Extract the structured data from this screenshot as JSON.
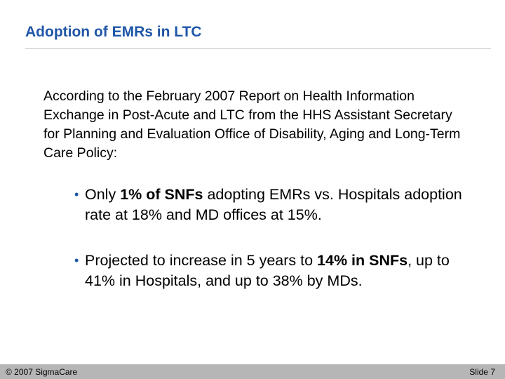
{
  "slide": {
    "title": "Adoption of EMRs in LTC",
    "intro": "According to the February 2007 Report on Health Information Exchange in Post-Acute and LTC from the HHS Assistant Secretary for Planning and Evaluation Office of Disability, Aging and Long-Term Care Policy:",
    "bullets": [
      {
        "pre": "Only ",
        "bold": "1% of SNFs",
        "post": " adopting EMRs vs. Hospitals adoption rate at 18% and MD offices at 15%."
      },
      {
        "pre": "Projected to increase in 5 years to ",
        "bold": "14% in SNFs",
        "post": ", up to 41% in Hospitals, and up to 38% by MDs."
      }
    ],
    "bullet_glyph": "•"
  },
  "footer": {
    "copyright": "© 2007 SigmaCare",
    "slide_number": "Slide 7"
  },
  "colors": {
    "title": "#1f56a8",
    "footer_bar": "#b6b6b6"
  }
}
